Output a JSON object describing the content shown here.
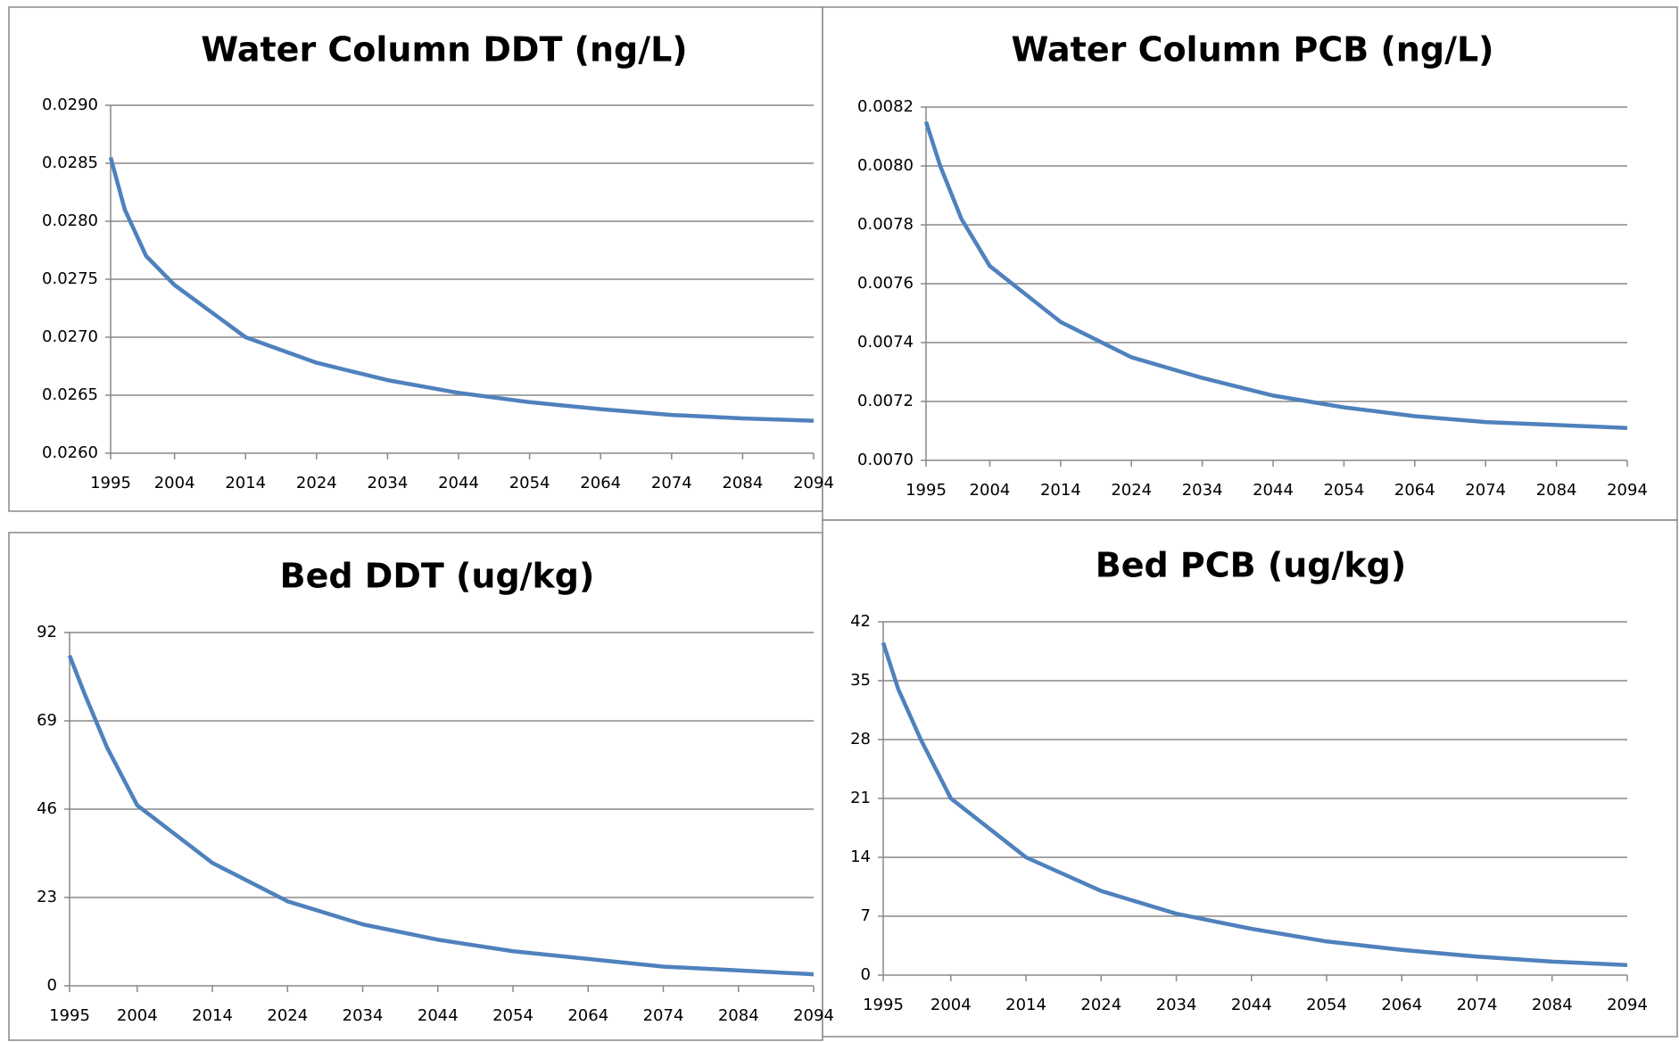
{
  "chart_data": [
    {
      "type": "line",
      "title": "Water Column DDT (ng/L)",
      "color": "#4f81bd",
      "grid": true,
      "x": [
        1995,
        1997,
        2000,
        2004,
        2014,
        2024,
        2034,
        2044,
        2054,
        2064,
        2074,
        2084,
        2094
      ],
      "values": [
        0.02855,
        0.0281,
        0.0277,
        0.02745,
        0.027,
        0.02678,
        0.02663,
        0.02652,
        0.02644,
        0.02638,
        0.02633,
        0.0263,
        0.02628
      ],
      "xlim": [
        1995,
        2094
      ],
      "xticks": [
        1995,
        2004,
        2014,
        2024,
        2034,
        2044,
        2054,
        2064,
        2074,
        2084,
        2094
      ],
      "ylim": [
        0.026,
        0.029
      ],
      "yticks": [
        {
          "value": 0.026,
          "label": "0.0260"
        },
        {
          "value": 0.0265,
          "label": "0.0265"
        },
        {
          "value": 0.027,
          "label": "0.0270"
        },
        {
          "value": 0.0275,
          "label": "0.0275"
        },
        {
          "value": 0.028,
          "label": "0.0280"
        },
        {
          "value": 0.0285,
          "label": "0.0285"
        },
        {
          "value": 0.029,
          "label": "0.0290"
        }
      ]
    },
    {
      "type": "line",
      "title": "Water Column PCB (ng/L)",
      "color": "#4f81bd",
      "grid": true,
      "x": [
        1995,
        1997,
        2000,
        2004,
        2014,
        2024,
        2034,
        2044,
        2054,
        2064,
        2074,
        2084,
        2094
      ],
      "values": [
        0.00815,
        0.008,
        0.00782,
        0.00766,
        0.00747,
        0.00735,
        0.00728,
        0.00722,
        0.00718,
        0.00715,
        0.00713,
        0.00712,
        0.00711
      ],
      "xlim": [
        1995,
        2094
      ],
      "xticks": [
        1995,
        2004,
        2014,
        2024,
        2034,
        2044,
        2054,
        2064,
        2074,
        2084,
        2094
      ],
      "ylim": [
        0.007,
        0.0082
      ],
      "yticks": [
        {
          "value": 0.007,
          "label": "0.0070"
        },
        {
          "value": 0.0072,
          "label": "0.0072"
        },
        {
          "value": 0.0074,
          "label": "0.0074"
        },
        {
          "value": 0.0076,
          "label": "0.0076"
        },
        {
          "value": 0.0078,
          "label": "0.0078"
        },
        {
          "value": 0.008,
          "label": "0.0080"
        },
        {
          "value": 0.0082,
          "label": "0.0082"
        }
      ]
    },
    {
      "type": "line",
      "title": "Bed DDT (ug/kg)",
      "color": "#4f81bd",
      "grid": true,
      "x": [
        1995,
        1997,
        2000,
        2004,
        2014,
        2024,
        2034,
        2044,
        2054,
        2064,
        2074,
        2084,
        2094
      ],
      "values": [
        86,
        76,
        62,
        47,
        32,
        22,
        16,
        12,
        9,
        7,
        5,
        4,
        3
      ],
      "xlim": [
        1995,
        2094
      ],
      "xticks": [
        1995,
        2004,
        2014,
        2024,
        2034,
        2044,
        2054,
        2064,
        2074,
        2084,
        2094
      ],
      "ylim": [
        0,
        92
      ],
      "yticks": [
        0,
        23,
        46,
        69,
        92
      ]
    },
    {
      "type": "line",
      "title": "Bed PCB (ug/kg)",
      "color": "#4f81bd",
      "grid": true,
      "x": [
        1995,
        1997,
        2000,
        2004,
        2014,
        2024,
        2034,
        2044,
        2054,
        2064,
        2074,
        2084,
        2094
      ],
      "values": [
        39.5,
        34,
        28,
        21,
        14,
        10,
        7.3,
        5.5,
        4,
        3,
        2.2,
        1.6,
        1.2
      ],
      "xlim": [
        1995,
        2094
      ],
      "xticks": [
        1995,
        2004,
        2014,
        2024,
        2034,
        2044,
        2054,
        2064,
        2074,
        2084,
        2094
      ],
      "ylim": [
        0,
        42
      ],
      "yticks": [
        0,
        7,
        14,
        21,
        28,
        35,
        42
      ]
    }
  ]
}
